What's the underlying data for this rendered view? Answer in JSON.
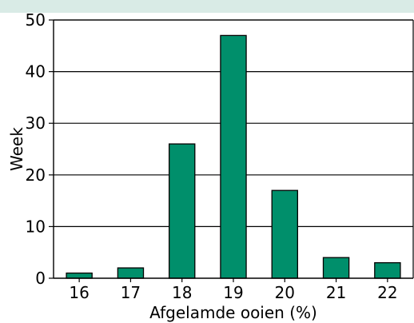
{
  "colors": {
    "bar": "#008f6b",
    "bar_stroke": "#000000",
    "header_band": "#d9ebe6"
  },
  "chart_data": {
    "type": "bar",
    "categories": [
      "16",
      "17",
      "18",
      "19",
      "20",
      "21",
      "22"
    ],
    "values": [
      1,
      2,
      26,
      47,
      17,
      4,
      3
    ],
    "title": "",
    "xlabel": "Afgelamde ooien (%)",
    "ylabel": "Week",
    "ylim": [
      0,
      50
    ],
    "yticks": [
      "0",
      "10",
      "20",
      "30",
      "40",
      "50"
    ],
    "grid": "horizontal",
    "legend": "none"
  }
}
